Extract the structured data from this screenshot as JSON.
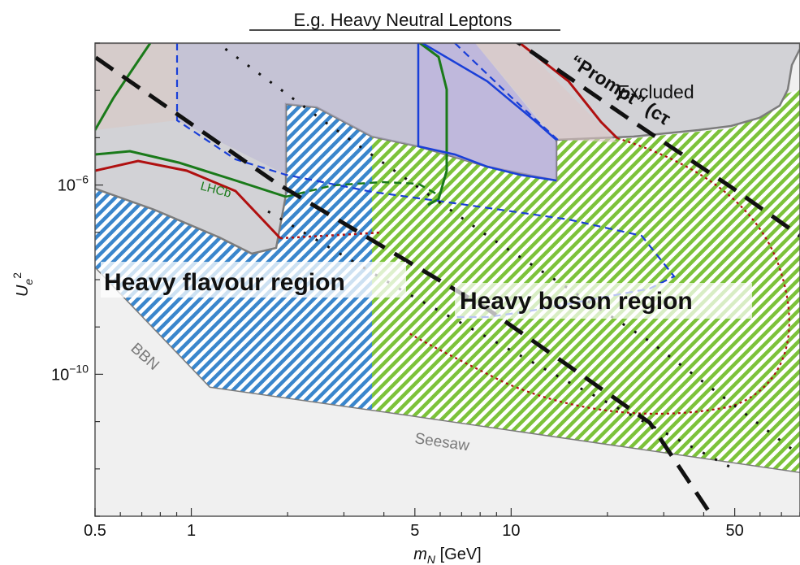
{
  "chart_data": {
    "type": "area",
    "title": "E.g. Heavy Neutral Leptons",
    "xlabel": "m_N [GeV]",
    "ylabel": "U_e^2",
    "x_scale": "log",
    "y_scale": "log",
    "xlim": [
      0.5,
      80
    ],
    "ylim": [
      1e-13,
      0.001
    ],
    "x_ticks": [
      {
        "value": 0.5,
        "label": "0.5"
      },
      {
        "value": 1,
        "label": "1"
      },
      {
        "value": 5,
        "label": "5"
      },
      {
        "value": 10,
        "label": "10"
      },
      {
        "value": 50,
        "label": "50"
      }
    ],
    "y_ticks": [
      {
        "value": 1e-06,
        "base": "10",
        "exp": "−6"
      },
      {
        "value": 1e-10,
        "base": "10",
        "exp": "−10"
      }
    ],
    "regions": [
      {
        "label": "Heavy flavour region",
        "x_range": [
          0.5,
          5
        ]
      },
      {
        "label": "Heavy boson region",
        "x_range": [
          3.5,
          80
        ]
      }
    ],
    "annotations": [
      {
        "text": "Excluded"
      },
      {
        "text": "“Prompt” (cτ"
      },
      {
        "text": "BBN"
      },
      {
        "text": "Seesaw"
      },
      {
        "text": "LHCb"
      }
    ],
    "series": [
      {
        "name": "LHCb",
        "color": "#1a7a1a",
        "x": [
          0.5,
          1,
          1.9
        ],
        "y": [
          1.5e-05,
          5e-06,
          1e-06
        ]
      },
      {
        "name": "Seesaw",
        "color": "#888888",
        "x": [
          0.5,
          5,
          80
        ],
        "y": [
          1e-11,
          1e-11,
          1e-12
        ]
      },
      {
        "name": "BBN",
        "color": "#888888",
        "x": [
          0.5,
          1.1,
          80
        ],
        "y": [
          1e-08,
          1e-10,
          1e-11
        ]
      }
    ],
    "colors": {
      "excluded": "#d4d4d7",
      "hatch_blue": "#3a86cc",
      "hatch_green": "#7cc23a",
      "red_curve": "#b01010",
      "green_curve": "#1a7a1a",
      "blue_curve": "#1a3fd8",
      "boundary": "#808080"
    }
  }
}
